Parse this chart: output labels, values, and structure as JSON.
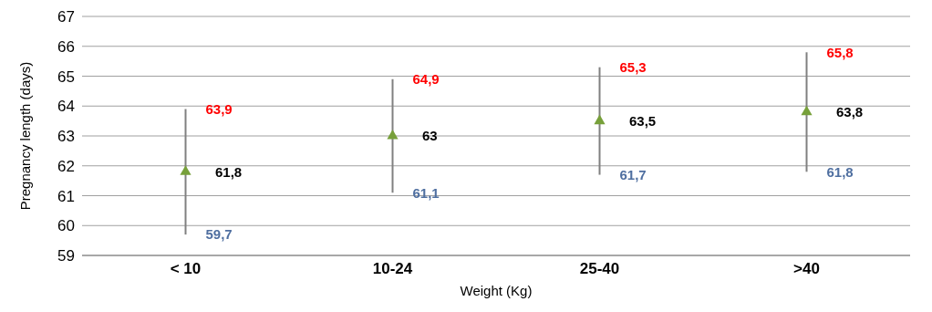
{
  "chart_data": {
    "type": "scatter",
    "xlabel": "Weight (Kg)",
    "ylabel": "Pregnancy length (days)",
    "categories": [
      "< 10",
      "10-24",
      "25-40",
      ">40"
    ],
    "values": [
      61.8,
      63,
      63.5,
      63.8
    ],
    "value_labels": [
      "61,8",
      "63",
      "63,5",
      "63,8"
    ],
    "errors": [
      [
        59.7,
        63.9
      ],
      [
        61.1,
        64.9
      ],
      [
        61.7,
        65.3
      ],
      [
        61.8,
        65.8
      ]
    ],
    "color": "#77a03a",
    "marker": "triangle",
    "ylim": [
      59,
      67
    ],
    "yticks": [
      59,
      60,
      61,
      62,
      63,
      64,
      65,
      66,
      67
    ],
    "grid": "y",
    "annotations": [
      {
        "text": "63,9",
        "x": "< 10",
        "y": 63.9
      },
      {
        "text": "59,7",
        "x": "< 10",
        "y": 59.7
      },
      {
        "text": "64,9",
        "x": "10-24",
        "y": 64.9
      },
      {
        "text": "61,1",
        "x": "10-24",
        "y": 61.1
      },
      {
        "text": "65,3",
        "x": "25-40",
        "y": 65.3
      },
      {
        "text": "61,7",
        "x": "25-40",
        "y": 61.7
      },
      {
        "text": "65,8",
        "x": ">40",
        "y": 65.8
      },
      {
        "text": "61,8",
        "x": ">40",
        "y": 61.8
      }
    ]
  }
}
